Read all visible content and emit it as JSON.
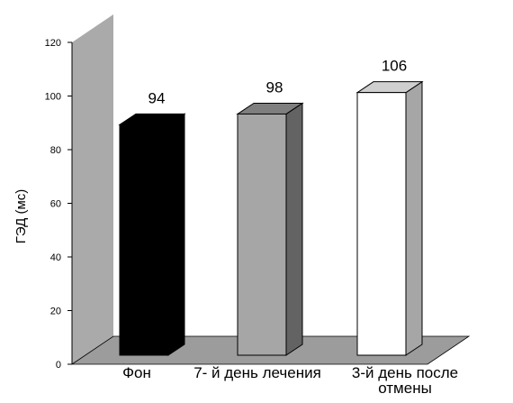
{
  "chart_data": {
    "type": "bar",
    "ylabel": "ГЭД (мс)",
    "ylim": [
      0,
      120
    ],
    "yticks": [
      "0",
      "20",
      "40",
      "60",
      "80",
      "100",
      "120"
    ],
    "categories": [
      "Фон",
      "7- й день лечения",
      "3-й день после отмены"
    ],
    "category_lines": [
      [
        "Фон"
      ],
      [
        "7- й день лечения"
      ],
      [
        "3-й день после",
        "отмены"
      ]
    ],
    "values": [
      94,
      98,
      106
    ],
    "data_labels": [
      "94",
      "98",
      "106"
    ],
    "bar_colors": [
      "#000000",
      "#a6a6a6",
      "#ffffff"
    ],
    "bar_side_colors": [
      "#000000",
      "#636363",
      "#a6a6a6"
    ],
    "bar_top_colors": [
      "#000000",
      "#7f7f7f",
      "#cfcfcf"
    ],
    "wall_color": "#aaaaaa",
    "floor_color": "#9c9c9c",
    "three_d": true
  }
}
